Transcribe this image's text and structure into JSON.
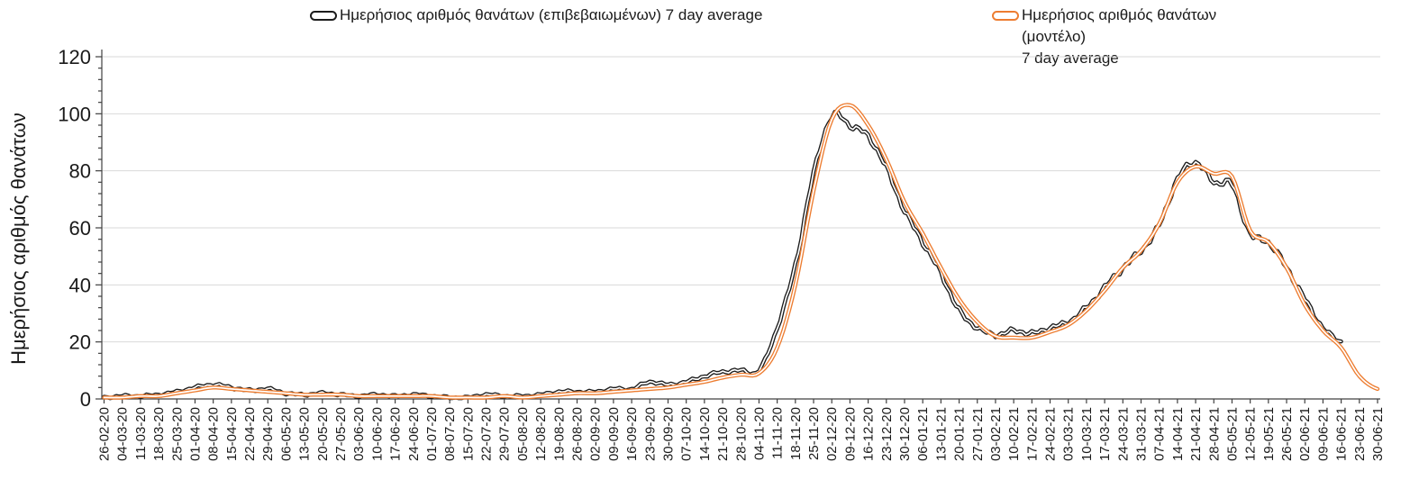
{
  "y_axis_title": "Ημερήσιος αριθμός θανάτων",
  "legend": {
    "confirmed": {
      "label": "Ημερήσιος αριθμός θανάτων (επιβεβαιωμένων) 7 day average",
      "color": "#1c1c1c"
    },
    "model": {
      "line1": "Ημερήσιος αριθμός θανάτων",
      "line2": "(μοντέλο)",
      "line3": "7 day average",
      "color": "#ED7D31"
    }
  },
  "chart_data": {
    "type": "line",
    "title": "",
    "xlabel": "",
    "ylabel": "Ημερήσιος αριθμός θανάτων",
    "ylim": [
      0,
      120
    ],
    "y_major_step": 20,
    "y_minor_step": 4,
    "grid": true,
    "legend_position": "top",
    "axis_color": "#404040",
    "grid_color": "#D9D9D9",
    "text_color": "#1a1a1a",
    "categories": [
      "26-02-20",
      "04-03-20",
      "11-03-20",
      "18-03-20",
      "25-03-20",
      "01-04-20",
      "08-04-20",
      "15-04-20",
      "22-04-20",
      "29-04-20",
      "06-05-20",
      "13-05-20",
      "20-05-20",
      "27-05-20",
      "03-06-20",
      "10-06-20",
      "17-06-20",
      "24-06-20",
      "01-07-20",
      "08-07-20",
      "15-07-20",
      "22-07-20",
      "29-07-20",
      "05-08-20",
      "12-08-20",
      "19-08-20",
      "26-08-20",
      "02-09-20",
      "09-09-20",
      "16-09-20",
      "23-09-20",
      "30-09-20",
      "07-10-20",
      "14-10-20",
      "21-10-20",
      "28-10-20",
      "04-11-20",
      "11-11-20",
      "18-11-20",
      "25-11-20",
      "02-12-20",
      "09-12-20",
      "16-12-20",
      "23-12-20",
      "30-12-20",
      "06-01-21",
      "13-01-21",
      "20-01-21",
      "27-01-21",
      "03-02-21",
      "10-02-21",
      "17-02-21",
      "24-02-21",
      "03-03-21",
      "10-03-21",
      "17-03-21",
      "24-03-21",
      "31-03-21",
      "07-04-21",
      "14-04-21",
      "21-04-21",
      "28-04-21",
      "05-05-21",
      "12-05-21",
      "19-05-21",
      "26-05-21",
      "02-06-21",
      "09-06-21",
      "16-06-21",
      "23-06-21",
      "30-06-21"
    ],
    "series": [
      {
        "name": "Ημερήσιος αριθμός θανάτων (επιβεβαιωμένων) 7 day average",
        "color": "#1c1c1c",
        "style": "tube",
        "jitter": 1.1,
        "values": [
          0.5,
          1,
          1,
          1.5,
          2.5,
          4,
          5,
          4,
          3,
          3.5,
          2,
          1.5,
          2,
          1.5,
          1,
          1.5,
          1,
          1.5,
          1,
          0.5,
          0.5,
          1.5,
          1,
          1,
          1.5,
          2.5,
          2.5,
          2.5,
          3.5,
          3.5,
          6,
          5,
          6,
          8,
          9.5,
          10,
          10,
          25,
          47,
          79,
          99,
          96,
          92,
          81,
          66,
          55,
          44,
          31,
          25,
          22.5,
          24,
          23,
          25,
          27,
          32,
          39,
          46,
          52,
          61,
          77,
          83,
          76,
          75,
          58,
          55,
          46,
          35,
          25,
          20,
          null,
          null
        ]
      },
      {
        "name": "Ημερήσιος αριθμός θανάτων (μοντέλο) 7 day average",
        "color": "#ED7D31",
        "style": "tube",
        "jitter": 0,
        "values": [
          0.5,
          0.5,
          1,
          1,
          2,
          3,
          4,
          3.5,
          3,
          2.5,
          2,
          1.5,
          1.5,
          1.5,
          1,
          1,
          1,
          1,
          1,
          0.5,
          0.5,
          0.5,
          1,
          0.5,
          1,
          1.5,
          2,
          2,
          2.5,
          3,
          3.5,
          4,
          5,
          6,
          7.5,
          8.5,
          9,
          18,
          40,
          73,
          98,
          103,
          96,
          84,
          69,
          58,
          46,
          35,
          27,
          22,
          21.5,
          21.5,
          23.5,
          26,
          31,
          38,
          46,
          52,
          61.5,
          76,
          81.5,
          79,
          78,
          59,
          55,
          46,
          33,
          24,
          18,
          8,
          3.5
        ]
      }
    ]
  }
}
